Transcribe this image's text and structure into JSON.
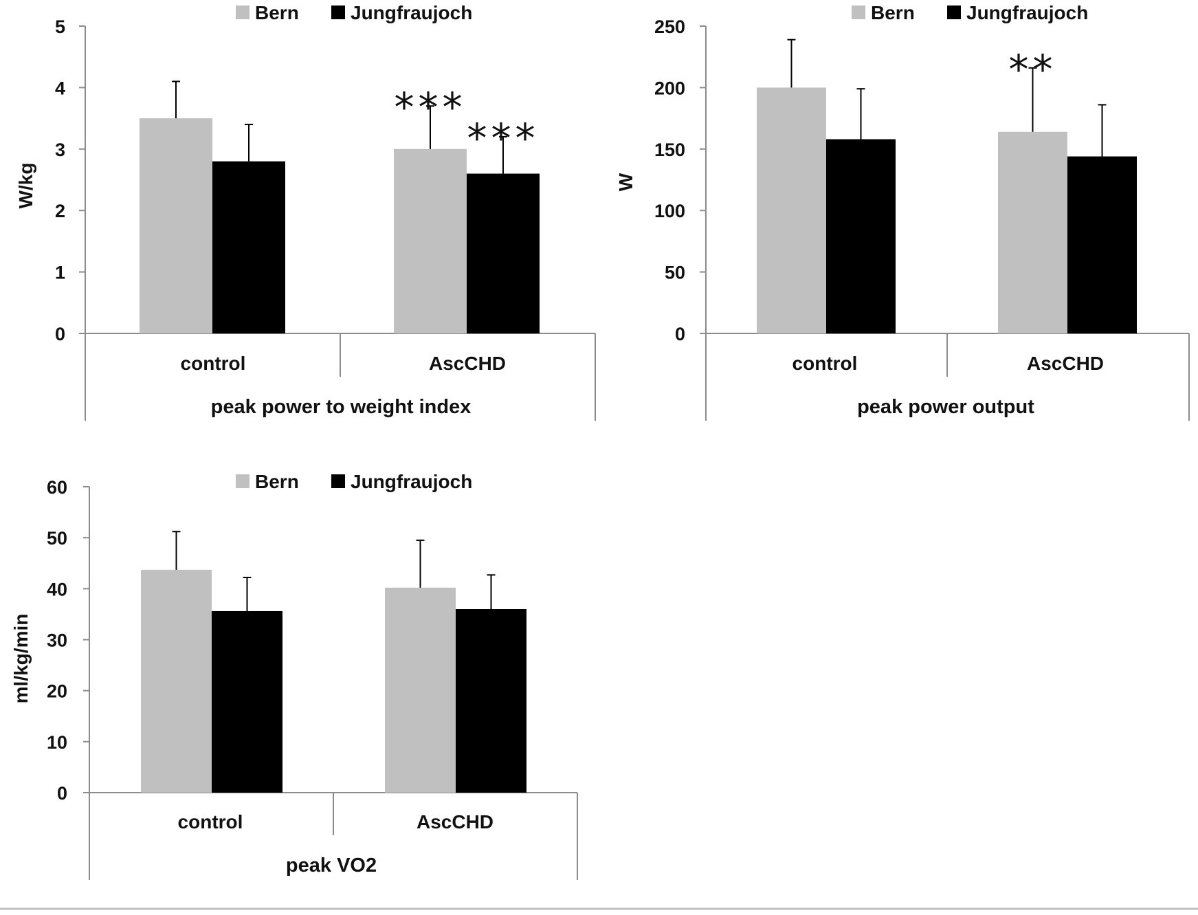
{
  "chart_data": [
    {
      "type": "bar",
      "ylabel": "W/kg",
      "xlabel": "peak power to weight index",
      "categories": [
        "control",
        "AscCHD"
      ],
      "ylim": [
        0,
        5
      ],
      "ticks": [
        "0",
        "1",
        "2",
        "3",
        "4",
        "5"
      ],
      "legend": {
        "position": "top",
        "entries": [
          "Bern",
          "Jungfraujoch"
        ]
      },
      "series": [
        {
          "name": "Bern",
          "color": "#c0c0c0",
          "values": [
            3.5,
            3.0
          ],
          "error": [
            0.6,
            0.7
          ]
        },
        {
          "name": "Jungfraujoch",
          "color": "#000000",
          "values": [
            2.8,
            2.6
          ],
          "error": [
            0.6,
            0.6
          ]
        }
      ],
      "annotations": [
        {
          "category": 1,
          "series": 0,
          "text": "***"
        },
        {
          "category": 1,
          "series": 1,
          "text": "***"
        }
      ]
    },
    {
      "type": "bar",
      "ylabel": "W",
      "xlabel": "peak power output",
      "categories": [
        "control",
        "AscCHD"
      ],
      "ylim": [
        0,
        250
      ],
      "ticks": [
        "0",
        "50",
        "100",
        "150",
        "200",
        "250"
      ],
      "legend": {
        "position": "top",
        "entries": [
          "Bern",
          "Jungfraujoch"
        ]
      },
      "series": [
        {
          "name": "Bern",
          "color": "#c0c0c0",
          "values": [
            200,
            164
          ],
          "error": [
            39,
            52
          ]
        },
        {
          "name": "Jungfraujoch",
          "color": "#000000",
          "values": [
            158,
            144
          ],
          "error": [
            41,
            42
          ]
        }
      ],
      "annotations": [
        {
          "category": 1,
          "series": 0,
          "text": "**"
        }
      ]
    },
    {
      "type": "bar",
      "ylabel": "ml/kg/min",
      "xlabel": "peak VO2",
      "categories": [
        "control",
        "AscCHD"
      ],
      "ylim": [
        0,
        60
      ],
      "ticks": [
        "0",
        "10",
        "20",
        "30",
        "40",
        "50",
        "60"
      ],
      "legend": {
        "position": "top",
        "entries": [
          "Bern",
          "Jungfraujoch"
        ]
      },
      "series": [
        {
          "name": "Bern",
          "color": "#c0c0c0",
          "values": [
            43.7,
            40.2
          ],
          "error": [
            7.5,
            9.3
          ]
        },
        {
          "name": "Jungfraujoch",
          "color": "#000000",
          "values": [
            35.6,
            36.0
          ],
          "error": [
            6.6,
            6.7
          ]
        }
      ],
      "annotations": []
    }
  ]
}
